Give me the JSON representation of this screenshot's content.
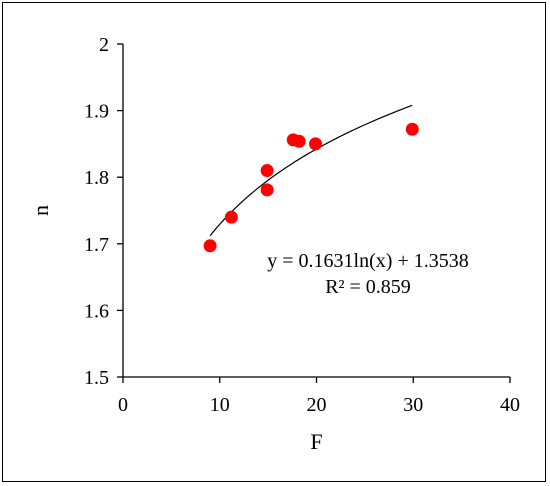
{
  "chart_data": {
    "type": "scatter",
    "title": "",
    "xlabel": "F",
    "ylabel": "n",
    "xlim": [
      0,
      40
    ],
    "ylim": [
      1.5,
      2
    ],
    "x_ticks": [
      "0",
      "10",
      "20",
      "30",
      "40"
    ],
    "y_ticks": [
      "1.5",
      "1.6",
      "1.7",
      "1.8",
      "1.9",
      "2"
    ],
    "grid": false,
    "marker_color": "#ff0000",
    "trendline_color": "#000000",
    "points": [
      {
        "x": 9.0,
        "y": 1.697
      },
      {
        "x": 11.2,
        "y": 1.74
      },
      {
        "x": 14.9,
        "y": 1.81
      },
      {
        "x": 14.9,
        "y": 1.781
      },
      {
        "x": 17.6,
        "y": 1.856
      },
      {
        "x": 18.2,
        "y": 1.854
      },
      {
        "x": 19.9,
        "y": 1.85
      },
      {
        "x": 29.9,
        "y": 1.872
      }
    ],
    "trendline": {
      "type": "logarithmic",
      "a": 0.1631,
      "b": 1.3538,
      "x_start": 9.0,
      "x_end": 29.9
    },
    "annotations": {
      "equation": "y = 0.1631ln(x) + 1.3538",
      "r_squared": "R² = 0.859"
    }
  }
}
